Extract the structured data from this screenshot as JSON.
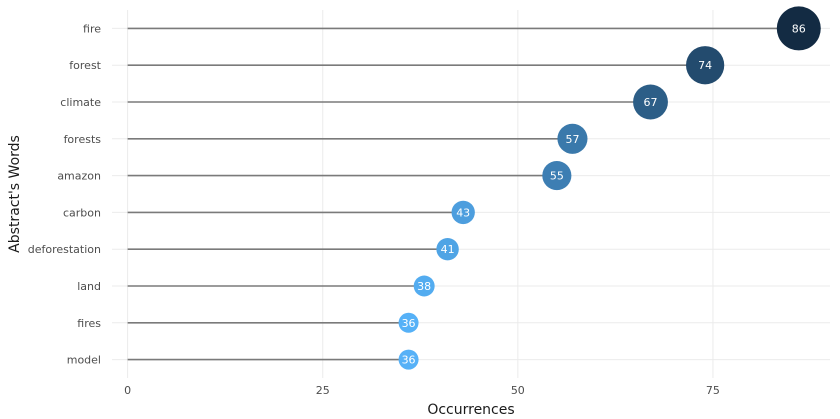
{
  "chart_data": {
    "type": "lollipop",
    "title": "",
    "xlabel": "Occurrences",
    "ylabel": "Abstract's Words",
    "xlim": [
      -2,
      90
    ],
    "xticks": [
      0,
      25,
      50,
      75
    ],
    "grid": true,
    "categories": [
      "fire",
      "forest",
      "climate",
      "forests",
      "amazon",
      "carbon",
      "deforestation",
      "land",
      "fires",
      "model"
    ],
    "values": [
      86,
      74,
      67,
      57,
      55,
      43,
      41,
      38,
      36,
      36
    ],
    "color_scale": {
      "low": "#56B1F7",
      "high": "#132B43"
    }
  }
}
